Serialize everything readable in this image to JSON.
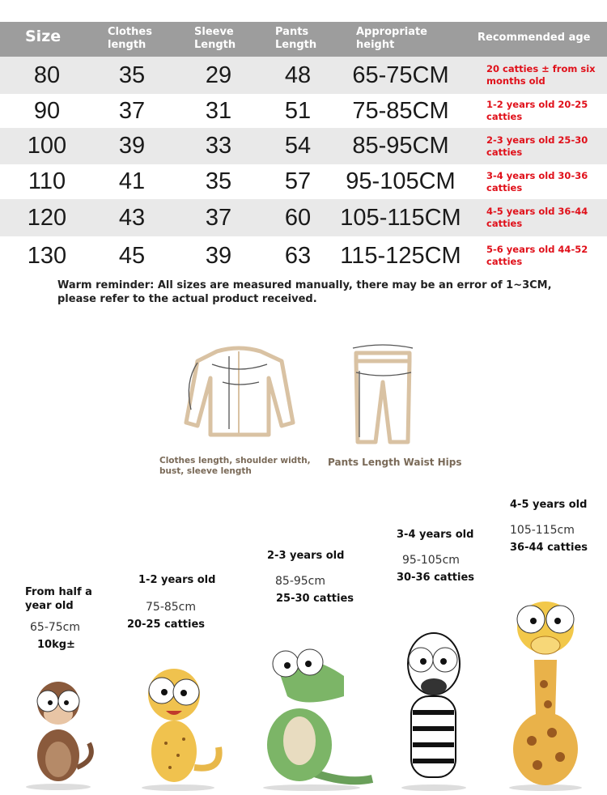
{
  "table": {
    "headers": [
      "Size",
      "Clothes length",
      "Sleeve Length",
      "Pants Length",
      "Appropriate height",
      "Recommended age"
    ],
    "rows": [
      {
        "size": "80",
        "clothes": "35",
        "sleeve": "29",
        "pants": "48",
        "height": "65-75CM",
        "age": "20 catties ± from six months old"
      },
      {
        "size": "90",
        "clothes": "37",
        "sleeve": "31",
        "pants": "51",
        "height": "75-85CM",
        "age": "1-2 years old 20-25 catties"
      },
      {
        "size": "100",
        "clothes": "39",
        "sleeve": "33",
        "pants": "54",
        "height": "85-95CM",
        "age": "2-3 years old 25-30 catties"
      },
      {
        "size": "110",
        "clothes": "41",
        "sleeve": "35",
        "pants": "57",
        "height": "95-105CM",
        "age": "3-4 years old 30-36 catties"
      },
      {
        "size": "120",
        "clothes": "43",
        "sleeve": "37",
        "pants": "60",
        "height": "105-115CM",
        "age": "4-5 years old 36-44 catties"
      },
      {
        "size": "130",
        "clothes": "45",
        "sleeve": "39",
        "pants": "63",
        "height": "115-125CM",
        "age": "5-6 years old 44-52 catties"
      }
    ]
  },
  "note": "Warm reminder: All sizes are measured manually, there may be an error of 1~3CM, please refer to the actual product received.",
  "diagram": {
    "shirt_caption": "Clothes length, shoulder width, bust, sleeve length",
    "pants_caption": "Pants Length Waist Hips"
  },
  "groups": [
    {
      "age": "From half a year old",
      "height": "65-75cm",
      "weight": "10kg±",
      "animal": "monkey"
    },
    {
      "age": "1-2 years old",
      "height": "75-85cm",
      "weight": "20-25 catties",
      "animal": "leopard"
    },
    {
      "age": "2-3 years old",
      "height": "85-95cm",
      "weight": "25-30 catties",
      "animal": "crocodile"
    },
    {
      "age": "3-4 years old",
      "height": "95-105cm",
      "weight": "30-36 catties",
      "animal": "zebra"
    },
    {
      "age": "4-5 years old",
      "height": "105-115cm",
      "weight": "36-44 catties",
      "animal": "giraffe"
    }
  ],
  "colors": {
    "header": "#9d9d9d",
    "stripe": "#e9e9e9",
    "age_text": "#e0101a",
    "garment": "#d9c2a3"
  }
}
